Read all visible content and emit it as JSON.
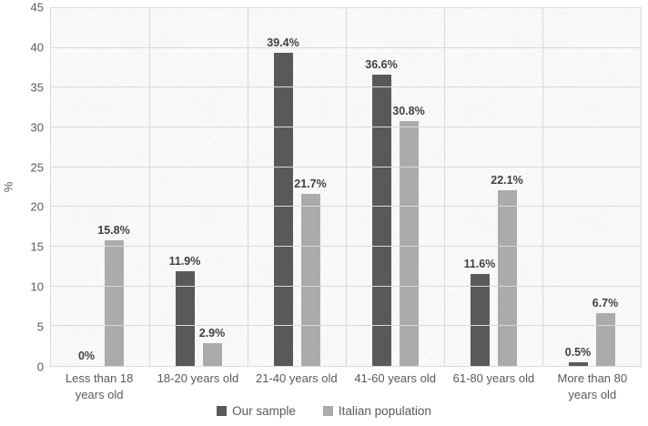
{
  "chart_data": {
    "type": "bar",
    "title": "",
    "categories": [
      "Less than 18 years old",
      "18-20 years old",
      "21-40 years old",
      "41-60 years old",
      "61-80 years old",
      "More than 80 years old"
    ],
    "series": [
      {
        "name": "Our sample",
        "color": "#595959",
        "values": [
          0,
          11.9,
          39.4,
          36.6,
          11.6,
          0.5
        ],
        "labels": [
          "0%",
          "11.9%",
          "39.4%",
          "36.6%",
          "11.6%",
          "0.5%"
        ]
      },
      {
        "name": "Italian population",
        "color": "#ababab",
        "values": [
          15.8,
          2.9,
          21.7,
          30.8,
          22.1,
          6.7
        ],
        "labels": [
          "15.8%",
          "2.9%",
          "21.7%",
          "30.8%",
          "22.1%",
          "6.7%"
        ]
      }
    ],
    "xlabel": "",
    "ylabel": "%",
    "ylim": [
      0,
      45
    ],
    "yticks": [
      0,
      5,
      10,
      15,
      20,
      25,
      30,
      35,
      40,
      45
    ],
    "grid": true,
    "legend_position": "bottom"
  },
  "colors": {
    "gridline": "#d9d9d9",
    "plot_border": "#d9d9d9",
    "axis_text": "#595959",
    "data_label_text": "#404040"
  }
}
